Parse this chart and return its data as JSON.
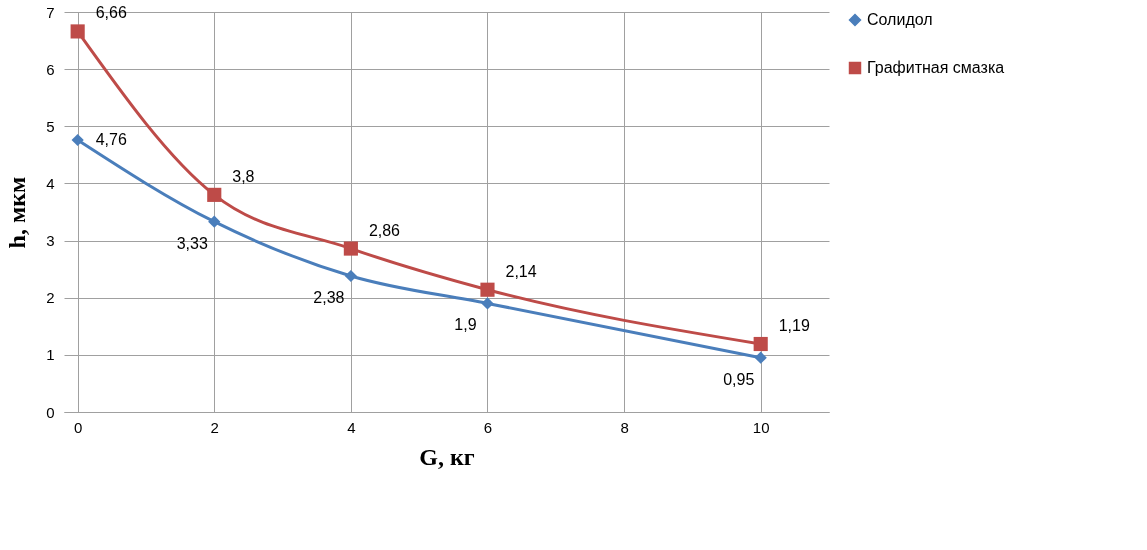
{
  "chart_data": {
    "type": "line",
    "xlabel": "G, кг",
    "ylabel": "h, мкм",
    "x": [
      0,
      2,
      4,
      6,
      10
    ],
    "series": [
      {
        "name": "Солидол",
        "color": "#4a7ebb",
        "marker": "diamond",
        "values": [
          4.76,
          3.33,
          2.38,
          1.9,
          0.95
        ],
        "value_labels": [
          "4,76",
          "3,33",
          "2,38",
          "1,9",
          "0,95"
        ]
      },
      {
        "name": "Графитная смазка",
        "color": "#be4b48",
        "marker": "square",
        "values": [
          6.66,
          3.8,
          2.86,
          2.14,
          1.19
        ],
        "value_labels": [
          "6,66",
          "3,8",
          "2,86",
          "2,14",
          "1,19"
        ]
      }
    ],
    "xlim": [
      -0.2,
      11
    ],
    "xticks": [
      0,
      2,
      4,
      6,
      8,
      10
    ],
    "ylim": [
      0,
      7
    ],
    "yticks": [
      0,
      1,
      2,
      3,
      4,
      5,
      6,
      7
    ],
    "grid": true,
    "legend": "right",
    "line_style": "solid"
  }
}
